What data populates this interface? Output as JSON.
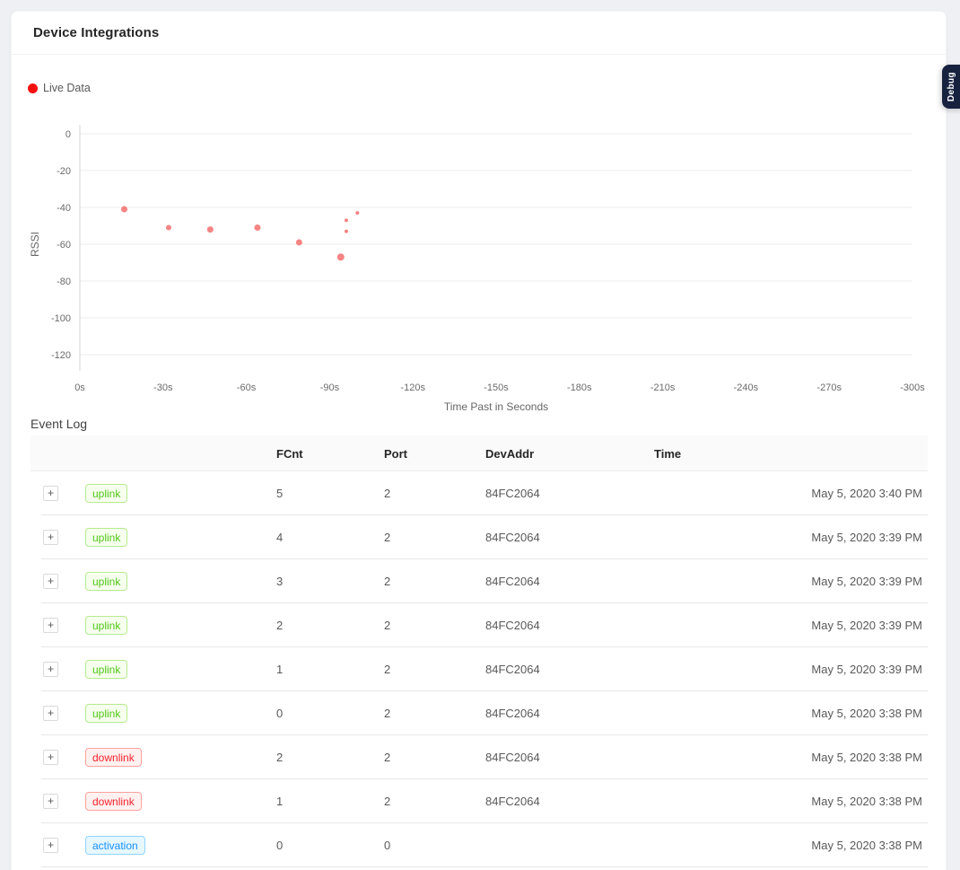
{
  "page": {
    "title": "Device Integrations"
  },
  "debug_tab": {
    "label": "Debug",
    "bg": "#16223e"
  },
  "legend": {
    "label": "Live Data",
    "dot_color": "#f50f0f"
  },
  "chart_data": {
    "type": "scatter",
    "title": "",
    "xlabel": "Time Past in Seconds",
    "ylabel": "RSSI",
    "xlim": [
      0,
      -300
    ],
    "ylim": [
      0,
      -120
    ],
    "x_ticks": [
      0,
      -30,
      -60,
      -90,
      -120,
      -150,
      -180,
      -210,
      -240,
      -270,
      -300
    ],
    "x_tick_labels": [
      "0s",
      "-30s",
      "-60s",
      "-90s",
      "-120s",
      "-150s",
      "-180s",
      "-210s",
      "-240s",
      "-270s",
      "-300s"
    ],
    "y_ticks": [
      0,
      -20,
      -40,
      -60,
      -80,
      -100,
      -120
    ],
    "grid": true,
    "legend_position": "top-left",
    "point_color": "#f56e6e",
    "points": [
      {
        "x": -16,
        "y": -41,
        "r": 3.5
      },
      {
        "x": -32,
        "y": -51,
        "r": 3
      },
      {
        "x": -47,
        "y": -52,
        "r": 3.5
      },
      {
        "x": -64,
        "y": -51,
        "r": 3.5
      },
      {
        "x": -79,
        "y": -59,
        "r": 3.5
      },
      {
        "x": -94,
        "y": -67,
        "r": 4
      },
      {
        "x": -96,
        "y": -47,
        "r": 2
      },
      {
        "x": -96,
        "y": -53,
        "r": 2
      },
      {
        "x": -100,
        "y": -43,
        "r": 2
      }
    ]
  },
  "event_log": {
    "title": "Event Log",
    "expand_label": "+",
    "columns": [
      "FCnt",
      "Port",
      "DevAddr",
      "Time"
    ],
    "badge_styles": {
      "uplink": {
        "color": "#52c41a",
        "bg": "#f6ffed",
        "border": "#b7eb8f"
      },
      "downlink": {
        "color": "#f5222d",
        "bg": "#fff1f0",
        "border": "#ffa39e"
      },
      "activation": {
        "color": "#1890ff",
        "bg": "#e6f7ff",
        "border": "#91d5ff"
      }
    },
    "rows": [
      {
        "type": "uplink",
        "fcnt": "5",
        "port": "2",
        "devaddr": "84FC2064",
        "time": "May 5, 2020 3:40 PM"
      },
      {
        "type": "uplink",
        "fcnt": "4",
        "port": "2",
        "devaddr": "84FC2064",
        "time": "May 5, 2020 3:39 PM"
      },
      {
        "type": "uplink",
        "fcnt": "3",
        "port": "2",
        "devaddr": "84FC2064",
        "time": "May 5, 2020 3:39 PM"
      },
      {
        "type": "uplink",
        "fcnt": "2",
        "port": "2",
        "devaddr": "84FC2064",
        "time": "May 5, 2020 3:39 PM"
      },
      {
        "type": "uplink",
        "fcnt": "1",
        "port": "2",
        "devaddr": "84FC2064",
        "time": "May 5, 2020 3:39 PM"
      },
      {
        "type": "uplink",
        "fcnt": "0",
        "port": "2",
        "devaddr": "84FC2064",
        "time": "May 5, 2020 3:38 PM"
      },
      {
        "type": "downlink",
        "fcnt": "2",
        "port": "2",
        "devaddr": "84FC2064",
        "time": "May 5, 2020 3:38 PM"
      },
      {
        "type": "downlink",
        "fcnt": "1",
        "port": "2",
        "devaddr": "84FC2064",
        "time": "May 5, 2020 3:38 PM"
      },
      {
        "type": "activation",
        "fcnt": "0",
        "port": "0",
        "devaddr": "",
        "time": "May 5, 2020 3:38 PM"
      }
    ]
  }
}
